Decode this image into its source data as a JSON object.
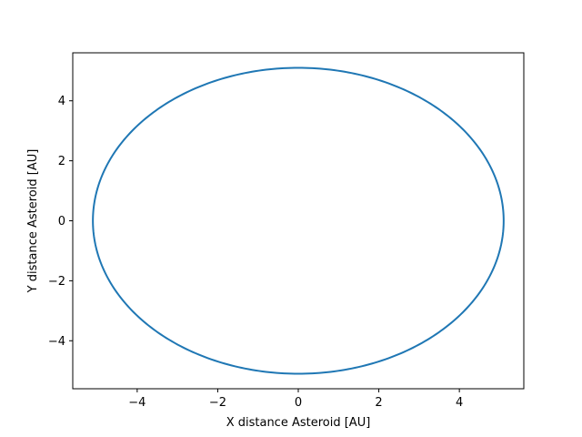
{
  "chart_data": {
    "type": "line",
    "title": "",
    "xlabel": "X distance Asteroid [AU]",
    "ylabel": "Y distance Asteroid [AU]",
    "xlim": [
      -5.6,
      5.6
    ],
    "ylim": [
      -5.6,
      5.6
    ],
    "xticks": [
      -4,
      -2,
      0,
      2,
      4
    ],
    "yticks": [
      -4,
      -2,
      0,
      2,
      4
    ],
    "xtick_labels": [
      "−4",
      "−2",
      "0",
      "2",
      "4"
    ],
    "ytick_labels": [
      "−4",
      "−2",
      "0",
      "2",
      "4"
    ],
    "grid": false,
    "legend": "none",
    "series": [
      {
        "shape": "ellipse",
        "center": [
          0,
          0
        ],
        "semi_axis_x": 5.1,
        "semi_axis_y": 5.1,
        "color": "#1f77b4"
      }
    ]
  }
}
